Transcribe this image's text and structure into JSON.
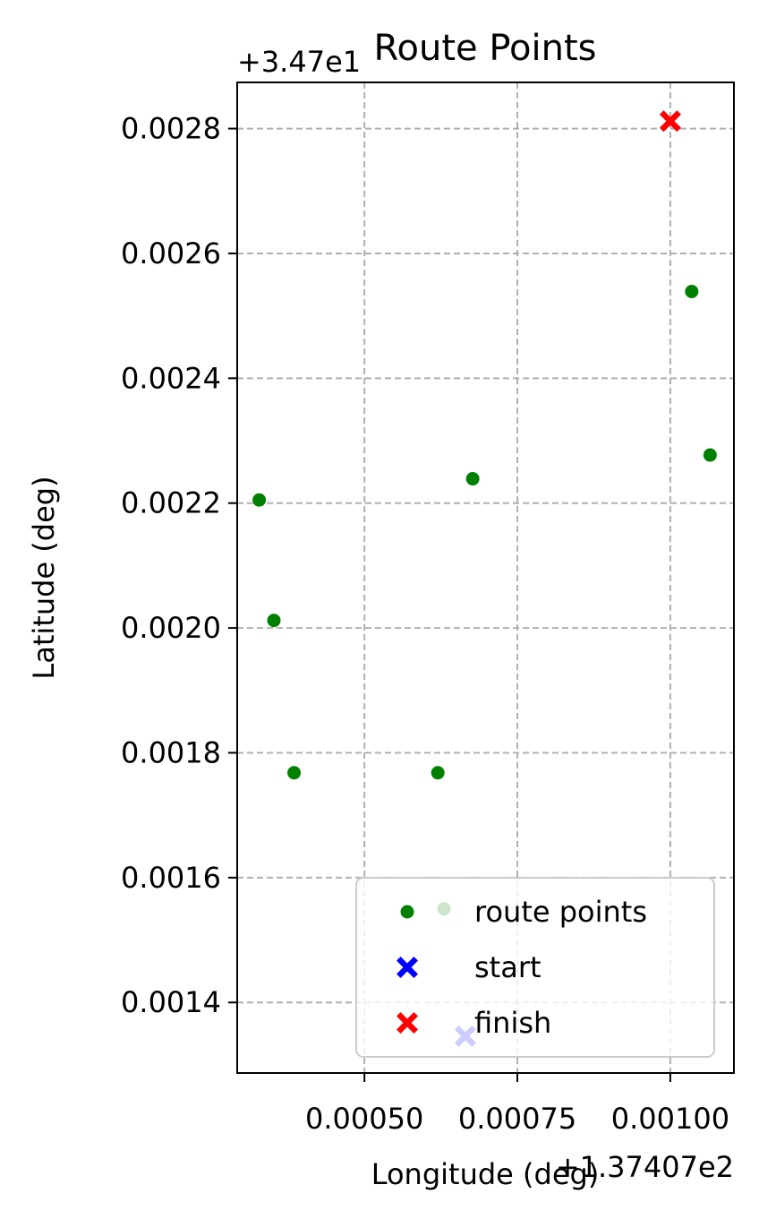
{
  "chart_data": {
    "type": "scatter",
    "title": "Route Points",
    "xlabel": "Longitude (deg)",
    "ylabel": "Latitude (deg)",
    "x_offset_label": "+1.37407e2",
    "y_offset_label": "+3.47e1",
    "xlim": [
      0.000292,
      0.001104
    ],
    "ylim": [
      0.001287,
      0.002874
    ],
    "x_ticks": [
      0.0005,
      0.00075,
      0.001
    ],
    "x_tick_labels": [
      "0.00050",
      "0.00075",
      "0.00100"
    ],
    "y_ticks": [
      0.0014,
      0.0016,
      0.0018,
      0.002,
      0.0022,
      0.0024,
      0.0026,
      0.0028
    ],
    "y_tick_labels": [
      "0.0014",
      "0.0016",
      "0.0018",
      "0.0020",
      "0.0022",
      "0.0024",
      "0.0026",
      "0.0028"
    ],
    "grid": true,
    "legend_position": "lower-right",
    "series": [
      {
        "name": "route points",
        "marker": "circle",
        "color": "#008000",
        "x": [
          0.000328,
          0.000352,
          0.000385,
          0.00062,
          0.00063,
          0.000677,
          0.001035,
          0.001065
        ],
        "y": [
          0.002205,
          0.002012,
          0.001768,
          0.001768,
          0.00155,
          0.002239,
          0.002539,
          0.002277
        ]
      },
      {
        "name": "start",
        "marker": "x-filled",
        "color": "#0000ff",
        "x": [
          0.000665
        ],
        "y": [
          0.001346
        ]
      },
      {
        "name": "finish",
        "marker": "x-filled",
        "color": "#ff0000",
        "x": [
          0.001
        ],
        "y": [
          0.002812
        ]
      }
    ]
  }
}
